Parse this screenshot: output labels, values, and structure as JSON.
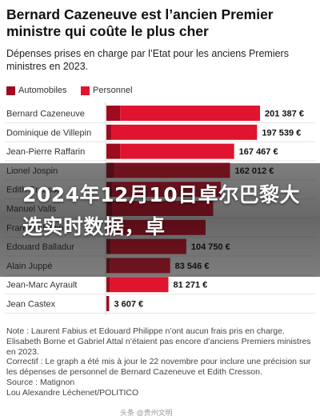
{
  "title": "Bernard Cazeneuve est l’ancien Premier ministre qui coûte le plus cher",
  "subtitle": "Dépenses prises en charge par l’Etat pour les anciens Premiers ministres en 2023.",
  "legend": {
    "auto": "Automobiles",
    "pers": "Personnel"
  },
  "colors": {
    "auto": "#9e0a1e",
    "pers": "#e0142e",
    "rest": "#c9c9c9"
  },
  "banner": "2024年12月10日卓尔巴黎大选实时数据，卓",
  "watermark": "头条 @贵州文明",
  "notes": [
    "Note : Laurent Fabius et Edouard Philippe n’ont aucun frais pris en charge. Elisabeth Borne et Gabriel Attal n’étaient pas encore d’anciens Premiers ministres en 2023.",
    "Correctif : Le graph a été mis à jour le 22 novembre pour inclure une précision sur les dépenses de personnel de Bernard Cazeneuve et Edith Cresson.",
    "Source : Matignon",
    "Lou Alexandre Léchenet/POLITICO"
  ],
  "chart_data": {
    "type": "bar",
    "orientation": "horizontal",
    "stacked": true,
    "categories": [
      "Bernard Cazeneuve",
      "Dominique de Villepin",
      "Jean-Pierre Raffarin",
      "Lionel Jospin",
      "Edith Cresson",
      "Manuel Valls",
      "François Fillon",
      "Edouard Balladur",
      "Alain Juppé",
      "Jean-Marc Ayrault",
      "Jean Castex"
    ],
    "totals": [
      201387,
      197539,
      167467,
      162012,
      150000,
      140000,
      130000,
      104750,
      83546,
      81271,
      3607
    ],
    "total_labels": [
      "201 387 €",
      "197 539 €",
      "167 467 €",
      "162 012 €",
      "",
      "",
      "",
      "104 750 €",
      "83 546 €",
      "81 271 €",
      "3 607 €"
    ],
    "series": [
      {
        "name": "Automobiles",
        "values": [
          18000,
          7000,
          18000,
          10000,
          8000,
          8000,
          8000,
          6000,
          5000,
          5000,
          3607
        ]
      },
      {
        "name": "Personnel",
        "values": [
          183387,
          190539,
          149467,
          152012,
          142000,
          132000,
          122000,
          98750,
          78546,
          76271,
          0
        ]
      }
    ],
    "xlim": [
      0,
      201387
    ],
    "grid": false,
    "legend_position": "top-left"
  }
}
